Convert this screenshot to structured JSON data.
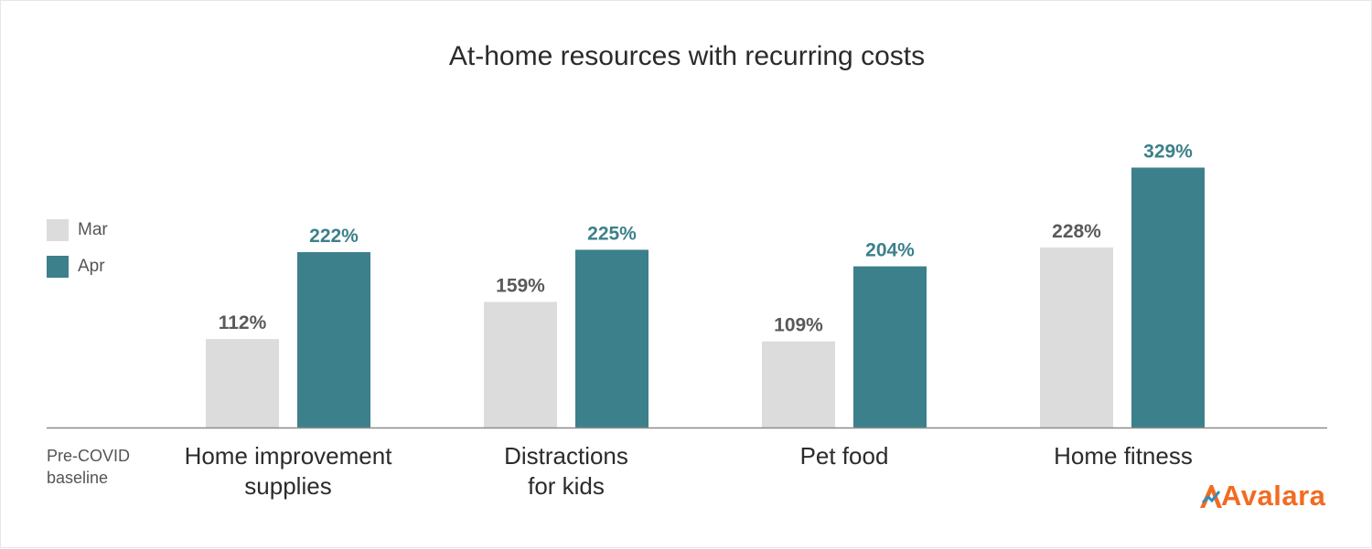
{
  "chart_data": {
    "type": "bar",
    "title": "At-home resources with recurring costs",
    "categories": [
      "Home improvement\nsupplies",
      "Distractions\nfor kids",
      "Pet food",
      "Home fitness"
    ],
    "series": [
      {
        "name": "Mar",
        "values": [
          112,
          159,
          109,
          228
        ],
        "labels": [
          "112%",
          "159%",
          "109%",
          "228%"
        ],
        "color": "#dcdcdc",
        "label_color": "#5a5a5a"
      },
      {
        "name": "Apr",
        "values": [
          222,
          225,
          204,
          329
        ],
        "labels": [
          "222%",
          "225%",
          "204%",
          "329%"
        ],
        "color": "#3c808b",
        "label_color": "#3c808b"
      }
    ],
    "baseline_label": "Pre-COVID\nbaseline",
    "ylim": [
      0,
      350
    ],
    "legend_position": "left",
    "grid": false
  },
  "brand": {
    "name": "Avalara",
    "color": "#f26b21"
  }
}
